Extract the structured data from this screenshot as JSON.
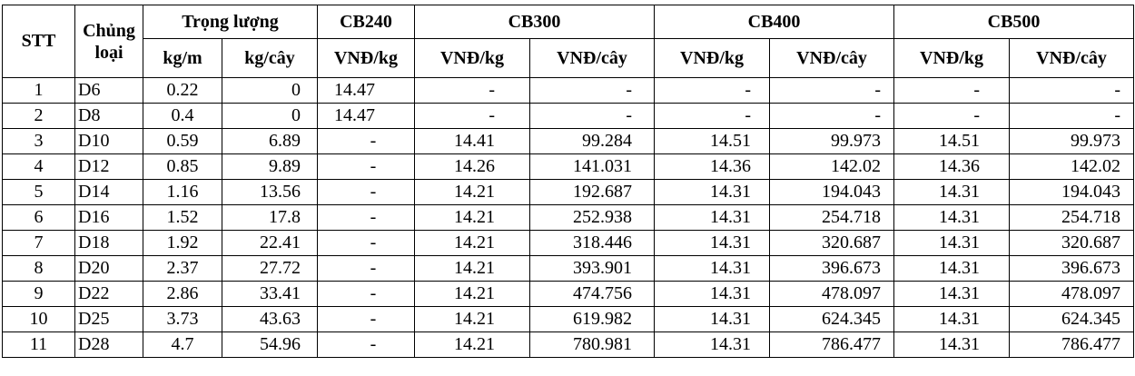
{
  "header": {
    "stt": "STT",
    "type": "Chủng loại",
    "weight": "Trọng lượng",
    "weight_kgm": "kg/m",
    "weight_kgc": "kg/cây",
    "cb240": "CB240",
    "cb240_unit": "VNĐ/kg",
    "cb300": "CB300",
    "cb300_unit1": "VNĐ/kg",
    "cb300_unit2": "VNĐ/cây",
    "cb400": "CB400",
    "cb400_unit1": "VNĐ/kg",
    "cb400_unit2": "VNĐ/cây",
    "cb500": "CB500",
    "cb500_unit1": "VNĐ/kg",
    "cb500_unit2": "VNĐ/cây"
  },
  "rows": [
    [
      "1",
      "D6",
      "0.22",
      "0",
      "14.47",
      "-",
      "-",
      "-",
      "-",
      "-",
      "-"
    ],
    [
      "2",
      "D8",
      "0.4",
      "0",
      "14.47",
      "-",
      "-",
      "-",
      "-",
      "-",
      "-"
    ],
    [
      "3",
      "D10",
      "0.59",
      "6.89",
      "-",
      "14.41",
      "99.284",
      "14.51",
      "99.973",
      "14.51",
      "99.973"
    ],
    [
      "4",
      "D12",
      "0.85",
      "9.89",
      "-",
      "14.26",
      "141.031",
      "14.36",
      "142.02",
      "14.36",
      "142.02"
    ],
    [
      "5",
      "D14",
      "1.16",
      "13.56",
      "-",
      "14.21",
      "192.687",
      "14.31",
      "194.043",
      "14.31",
      "194.043"
    ],
    [
      "6",
      "D16",
      "1.52",
      "17.8",
      "-",
      "14.21",
      "252.938",
      "14.31",
      "254.718",
      "14.31",
      "254.718"
    ],
    [
      "7",
      "D18",
      "1.92",
      "22.41",
      "-",
      "14.21",
      "318.446",
      "14.31",
      "320.687",
      "14.31",
      "320.687"
    ],
    [
      "8",
      "D20",
      "2.37",
      "27.72",
      "-",
      "14.21",
      "393.901",
      "14.31",
      "396.673",
      "14.31",
      "396.673"
    ],
    [
      "9",
      "D22",
      "2.86",
      "33.41",
      "-",
      "14.21",
      "474.756",
      "14.31",
      "478.097",
      "14.31",
      "478.097"
    ],
    [
      "10",
      "D25",
      "3.73",
      "43.63",
      "-",
      "14.21",
      "619.982",
      "14.31",
      "624.345",
      "14.31",
      "624.345"
    ],
    [
      "11",
      "D28",
      "4.7",
      "54.96",
      "-",
      "14.21",
      "780.981",
      "14.31",
      "786.477",
      "14.31",
      "786.477"
    ]
  ]
}
